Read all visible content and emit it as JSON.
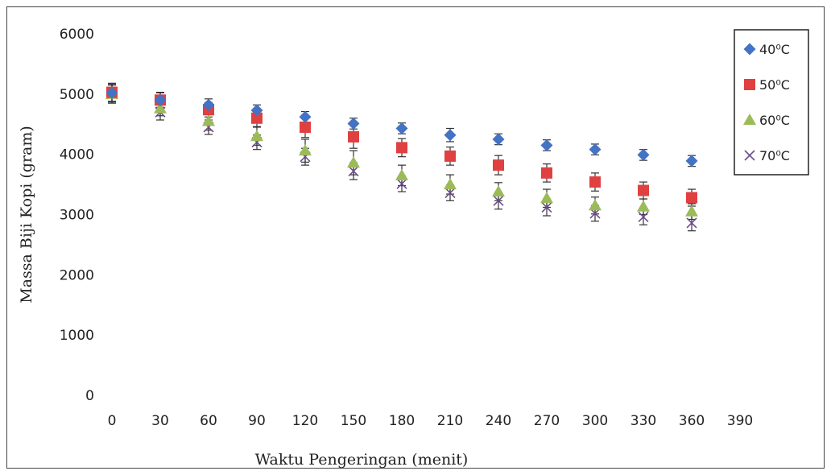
{
  "chart_data": {
    "type": "scatter",
    "xlabel": "Waktu Pengeringan (menit)",
    "ylabel": "Massa Biji  Kopi (gram)",
    "xlim": [
      0,
      390
    ],
    "ylim": [
      0,
      6000
    ],
    "x_ticks": [
      0,
      30,
      60,
      90,
      120,
      150,
      180,
      210,
      240,
      270,
      300,
      330,
      360,
      390
    ],
    "y_ticks": [
      0,
      1000,
      2000,
      3000,
      4000,
      5000,
      6000
    ],
    "grid": false,
    "legend_position": "top-right",
    "error_bars": true,
    "x": [
      0,
      30,
      60,
      90,
      120,
      150,
      180,
      210,
      240,
      270,
      300,
      330,
      360
    ],
    "series": [
      {
        "name": "40⁰C",
        "marker": "diamond",
        "color": "#4472C4",
        "values": [
          5020,
          4900,
          4820,
          4730,
          4620,
          4510,
          4430,
          4320,
          4250,
          4150,
          4080,
          3990,
          3890
        ],
        "error": [
          150,
          130,
          100,
          90,
          90,
          90,
          90,
          110,
          90,
          90,
          90,
          90,
          90
        ]
      },
      {
        "name": "50⁰C",
        "marker": "square",
        "color": "#E04040",
        "values": [
          5030,
          4900,
          4740,
          4600,
          4450,
          4290,
          4110,
          3970,
          3820,
          3690,
          3540,
          3400,
          3280
        ],
        "error": [
          150,
          120,
          120,
          140,
          170,
          190,
          150,
          150,
          160,
          150,
          150,
          140,
          140
        ]
      },
      {
        "name": "60⁰C",
        "marker": "triangle",
        "color": "#9BBB59",
        "values": [
          5000,
          4760,
          4550,
          4300,
          4060,
          3860,
          3650,
          3500,
          3380,
          3270,
          3150,
          3130,
          3050
        ],
        "error": [
          150,
          120,
          150,
          150,
          190,
          200,
          170,
          160,
          150,
          150,
          140,
          130,
          130
        ]
      },
      {
        "name": "70⁰C",
        "marker": "x",
        "color": "#6E4C8E",
        "values": [
          5000,
          4700,
          4450,
          4200,
          3960,
          3720,
          3510,
          3360,
          3230,
          3120,
          3020,
          2960,
          2860
        ],
        "error": [
          150,
          130,
          120,
          120,
          140,
          140,
          130,
          130,
          140,
          140,
          130,
          130,
          130
        ]
      }
    ]
  }
}
